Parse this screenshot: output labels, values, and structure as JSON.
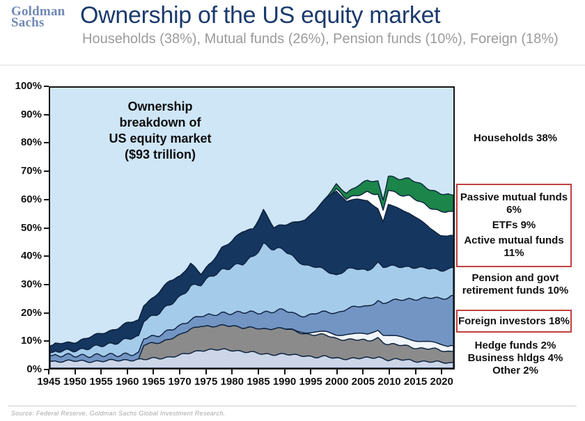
{
  "header": {
    "logo_line1": "Goldman",
    "logo_line2": "Sachs",
    "title": "Ownership of the US equity market",
    "subtitle": "Households (38%), Mutual funds (26%), Pension funds (10%), Foreign (18%)"
  },
  "annotation": {
    "lines": [
      "Ownership",
      "breakdown of",
      "US equity market",
      "($93 trillion)"
    ]
  },
  "side_labels": {
    "households": "Households 38%",
    "passive_line1": "Passive mutual funds",
    "passive_line2": "6%",
    "etfs": "ETFs 9%",
    "active_line1": "Active mutual funds",
    "active_line2": "11%",
    "pension_line1": "Pension and govt",
    "pension_line2": "retirement funds 10%",
    "foreign": "Foreign investors 18%",
    "hedge": "Hedge funds 2%",
    "business": "Business hldgs 4%",
    "other": "Other 2%"
  },
  "footer": {
    "source": "Source: Federal Reserve, Goldman Sachs Global Investment Research."
  },
  "colors": {
    "title_blue": "#1a3a6d",
    "logo_blue": "#6f88b6",
    "subtitle_gray": "#9b9b9b",
    "accent_red": "#c04040",
    "plot_bg": "#cfe6f7",
    "band_outline": "#0e2340"
  },
  "chart_data": {
    "type": "area",
    "stacked": true,
    "annotation": "Ownership breakdown of US equity market ($93 trillion)",
    "ylim": [
      0,
      100
    ],
    "xlim": [
      1945,
      2022.5
    ],
    "grid": false,
    "yticks": [
      0,
      10,
      20,
      30,
      40,
      50,
      60,
      70,
      80,
      90,
      100
    ],
    "ytick_suffix": "%",
    "xticks": [
      1945,
      1950,
      1955,
      1960,
      1965,
      1970,
      1975,
      1980,
      1985,
      1990,
      1995,
      2000,
      2005,
      2010,
      2015,
      2020
    ],
    "households_background": {
      "name": "Households 38%",
      "color": "#cfe6f7",
      "current_pct": 38
    },
    "x": [
      1945,
      1947,
      1950,
      1952,
      1955,
      1958,
      1960,
      1962,
      1963,
      1965,
      1968,
      1970,
      1972,
      1974,
      1976,
      1978,
      1980,
      1982,
      1984,
      1986,
      1988,
      1990,
      1992,
      1994,
      1996,
      1998,
      2000,
      2002,
      2004,
      2006,
      2008,
      2009,
      2010,
      2012,
      2014,
      2016,
      2018,
      2020,
      2022.5
    ],
    "series": [
      {
        "key": "other",
        "name": "Other 2%",
        "color": "#ccd6e8",
        "values": [
          2.5,
          2.5,
          2.5,
          2.5,
          2.5,
          2.8,
          3,
          3,
          3,
          3.5,
          4,
          4.5,
          5.5,
          6.5,
          6.5,
          6.5,
          6.5,
          6,
          5.5,
          5,
          5,
          5,
          4.5,
          4.5,
          4,
          4,
          3.5,
          3.5,
          3.5,
          3.5,
          4,
          3.5,
          3,
          3,
          2.8,
          2.5,
          2.3,
          2,
          2
        ]
      },
      {
        "key": "business",
        "name": "Business hldgs 4%",
        "color": "#8b8b8b",
        "values": [
          0,
          0,
          0,
          0,
          0,
          0,
          0,
          0,
          5,
          5.5,
          6.5,
          7,
          8.5,
          9,
          8,
          8.5,
          9,
          8.5,
          8.5,
          9,
          9.5,
          9,
          8.5,
          8,
          8,
          7.5,
          7,
          7,
          6.5,
          6,
          7,
          6,
          5.5,
          5,
          5,
          4.8,
          4.5,
          4.2,
          4
        ]
      },
      {
        "key": "hedge",
        "name": "Hedge funds 2%",
        "color": "#f2f5f9",
        "values": [
          0,
          0,
          0,
          0,
          0,
          0,
          0,
          0,
          0,
          0,
          0,
          0,
          0,
          0,
          0,
          0,
          0,
          0,
          0,
          0,
          0,
          0,
          0.3,
          0.5,
          0.8,
          1.2,
          1.5,
          1.8,
          2,
          2.5,
          3,
          2.5,
          3,
          3,
          2.8,
          2.5,
          2.3,
          2.2,
          2
        ]
      },
      {
        "key": "foreign",
        "name": "Foreign investors 18%",
        "color": "#7295c3",
        "values": [
          2,
          2,
          2,
          2,
          2,
          2,
          2,
          2,
          2.5,
          2.5,
          3,
          3.2,
          3.5,
          3.5,
          4,
          4.5,
          4.5,
          5.4,
          5.5,
          6,
          6,
          6.5,
          6,
          6,
          6.5,
          7,
          8,
          9,
          9.5,
          10,
          10.5,
          11,
          12,
          13,
          14.5,
          15,
          15.5,
          16.5,
          18
        ]
      },
      {
        "key": "pension",
        "name": "Pension and govt retirement funds 10%",
        "color": "#a5cbeb",
        "values": [
          1,
          1.5,
          2,
          2.5,
          3.5,
          4.5,
          5.5,
          6,
          6.5,
          7.5,
          9,
          10.5,
          12,
          11,
          14,
          15.5,
          16.5,
          17.2,
          20,
          24.5,
          22,
          21.5,
          20,
          18,
          16.5,
          15,
          13.5,
          14,
          13.5,
          13,
          13.5,
          13,
          12.5,
          12,
          11.5,
          11,
          10.5,
          10.2,
          10
        ]
      },
      {
        "key": "active",
        "name": "Active mutual funds 11%",
        "color": "#14365f",
        "values": [
          2.5,
          2.8,
          3,
          3.5,
          4.5,
          5,
          5.5,
          6,
          5.5,
          6.5,
          8.5,
          7.5,
          8,
          3.5,
          5,
          8,
          9,
          11.5,
          10,
          12,
          7.5,
          9,
          13,
          16,
          20,
          26,
          30,
          24,
          25,
          25,
          19,
          16,
          22,
          21,
          19,
          17,
          14.5,
          12.5,
          11.3
        ]
      },
      {
        "key": "etfs",
        "name": "ETFs 9%",
        "color": "#ffffff",
        "values": [
          0,
          0,
          0,
          0,
          0,
          0,
          0,
          0,
          0,
          0,
          0,
          0,
          0,
          0,
          0,
          0,
          0,
          0,
          0,
          0,
          0,
          0,
          0,
          0,
          0,
          0,
          0.5,
          1,
          1.5,
          3,
          5,
          4,
          5.5,
          5,
          6,
          6.5,
          7.5,
          8.5,
          8.6
        ]
      },
      {
        "key": "passive",
        "name": "Passive mutual funds 6%",
        "color": "#1c8549",
        "values": [
          0,
          0,
          0,
          0,
          0,
          0,
          0,
          0,
          0,
          0,
          0,
          0,
          0,
          0,
          0,
          0,
          0,
          0,
          0,
          0,
          0,
          0,
          0,
          0,
          0,
          0,
          1.5,
          2,
          3.5,
          4,
          4.5,
          4,
          5,
          5.5,
          6,
          6.5,
          6.5,
          6.2,
          5.8
        ]
      }
    ]
  }
}
